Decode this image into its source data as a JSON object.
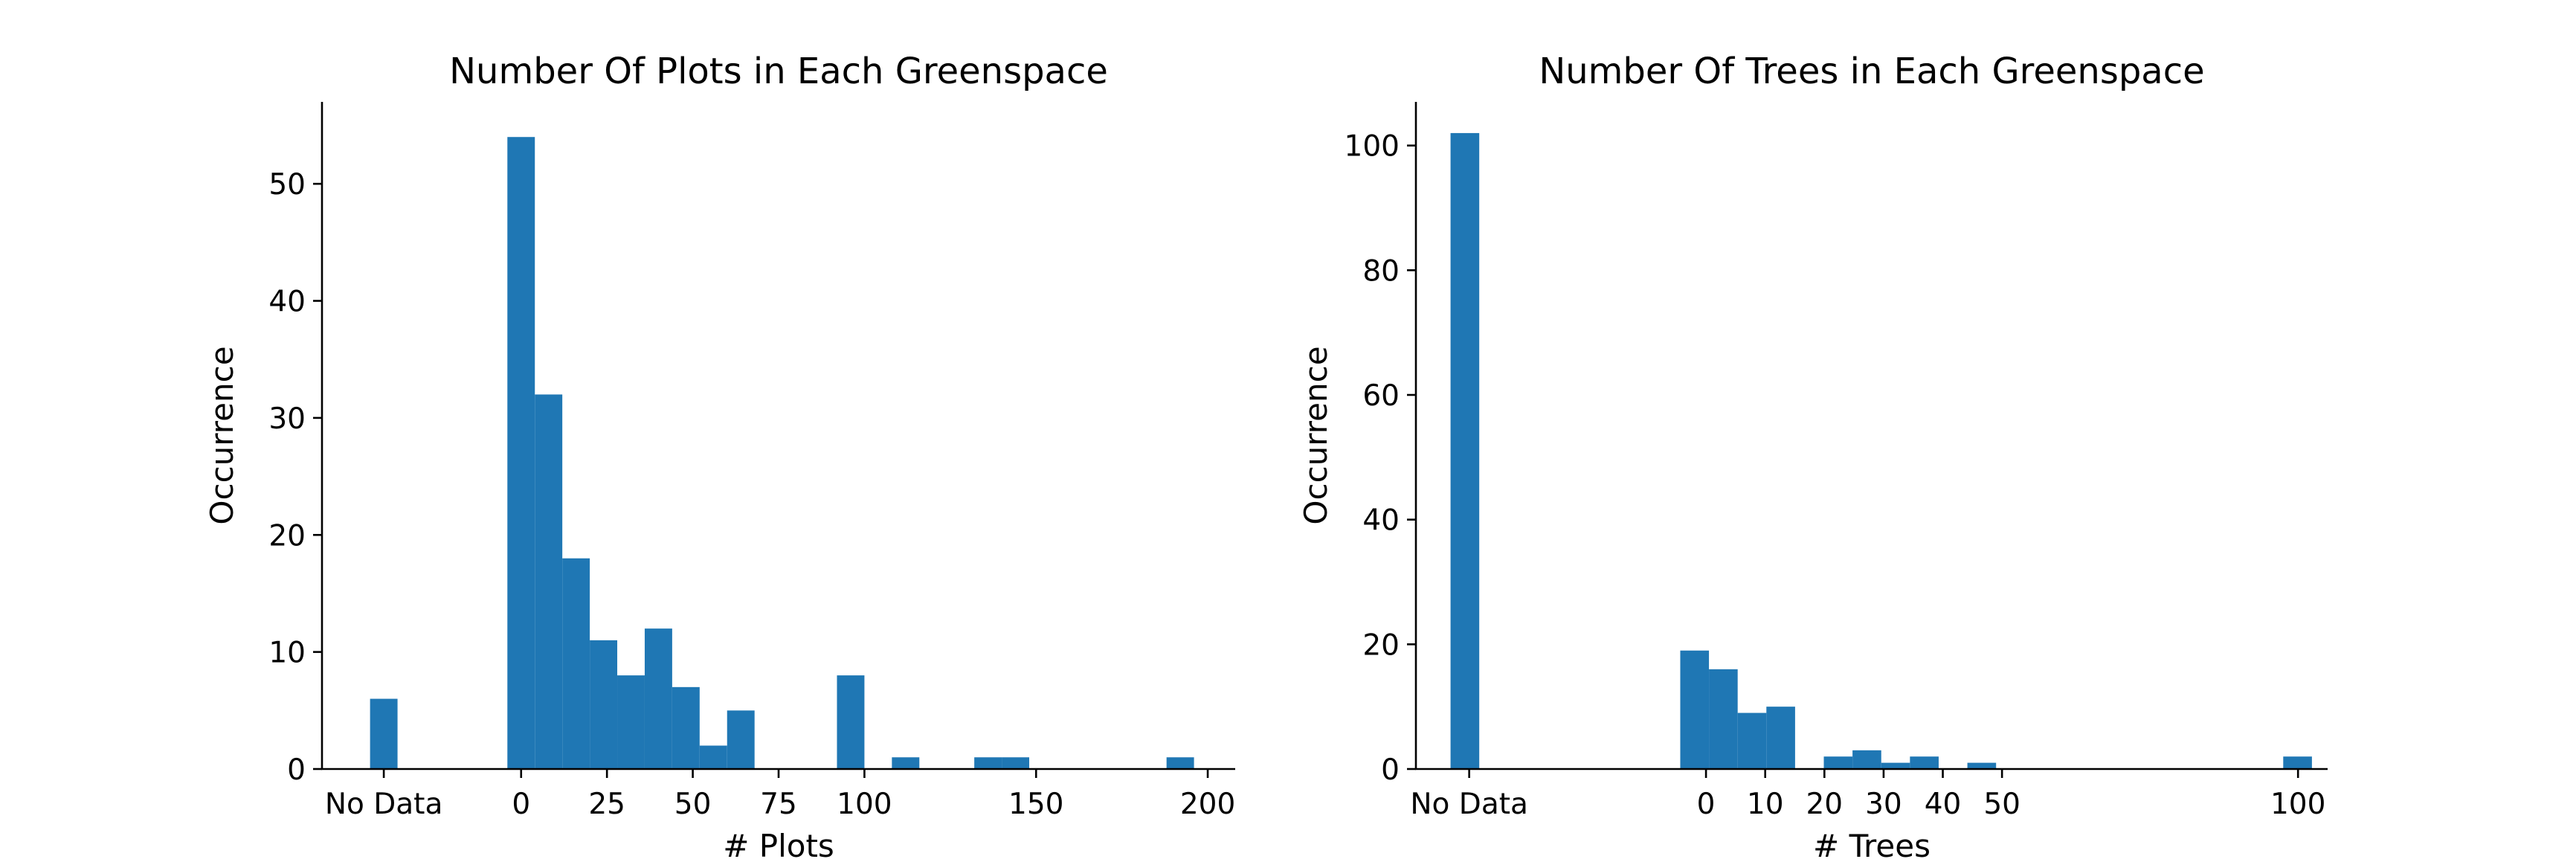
{
  "chart_data": [
    {
      "type": "bar",
      "title": "Number Of Plots in Each Greenspace",
      "xlabel": "# Plots",
      "ylabel": "Occurrence",
      "color": "#1f77b4",
      "xticks": [
        {
          "label": "No Data",
          "value": -40
        },
        {
          "label": "0",
          "value": 0
        },
        {
          "label": "25",
          "value": 25
        },
        {
          "label": "50",
          "value": 50
        },
        {
          "label": "75",
          "value": 75
        },
        {
          "label": "100",
          "value": 100
        },
        {
          "label": "150",
          "value": 150
        },
        {
          "label": "200",
          "value": 200
        }
      ],
      "xlim": [
        -58,
        208
      ],
      "yticks": [
        0,
        10,
        20,
        30,
        40,
        50
      ],
      "ylim": [
        0,
        57
      ],
      "bin_width": 8,
      "bins": [
        {
          "x": -44,
          "count": 6
        },
        {
          "x": -4,
          "count": 54
        },
        {
          "x": 4,
          "count": 32
        },
        {
          "x": 12,
          "count": 18
        },
        {
          "x": 20,
          "count": 11
        },
        {
          "x": 28,
          "count": 8
        },
        {
          "x": 36,
          "count": 12
        },
        {
          "x": 44,
          "count": 7
        },
        {
          "x": 52,
          "count": 2
        },
        {
          "x": 60,
          "count": 5
        },
        {
          "x": 92,
          "count": 8
        },
        {
          "x": 108,
          "count": 1
        },
        {
          "x": 132,
          "count": 1
        },
        {
          "x": 140,
          "count": 1
        },
        {
          "x": 188,
          "count": 1
        }
      ]
    },
    {
      "type": "bar",
      "title": "Number Of Trees in Each Greenspace",
      "xlabel": "# Trees",
      "ylabel": "Occurrence",
      "color": "#1f77b4",
      "xticks": [
        {
          "label": "No Data",
          "value": -40
        },
        {
          "label": "0",
          "value": 0
        },
        {
          "label": "10",
          "value": 10
        },
        {
          "label": "20",
          "value": 20
        },
        {
          "label": "30",
          "value": 30
        },
        {
          "label": "40",
          "value": 40
        },
        {
          "label": "50",
          "value": 50
        },
        {
          "label": "100",
          "value": 100
        }
      ],
      "xlim": [
        -49,
        105
      ],
      "yticks": [
        0,
        20,
        40,
        60,
        80,
        100
      ],
      "ylim": [
        0,
        107
      ],
      "bin_width": 4.85,
      "bins": [
        {
          "x": -43.15,
          "count": 102
        },
        {
          "x": -4.35,
          "count": 19
        },
        {
          "x": 0.5,
          "count": 16
        },
        {
          "x": 5.35,
          "count": 9
        },
        {
          "x": 10.2,
          "count": 10
        },
        {
          "x": 19.9,
          "count": 2
        },
        {
          "x": 24.75,
          "count": 3
        },
        {
          "x": 29.6,
          "count": 1
        },
        {
          "x": 34.45,
          "count": 2
        },
        {
          "x": 44.15,
          "count": 1
        },
        {
          "x": 97.5,
          "count": 2
        }
      ]
    }
  ]
}
